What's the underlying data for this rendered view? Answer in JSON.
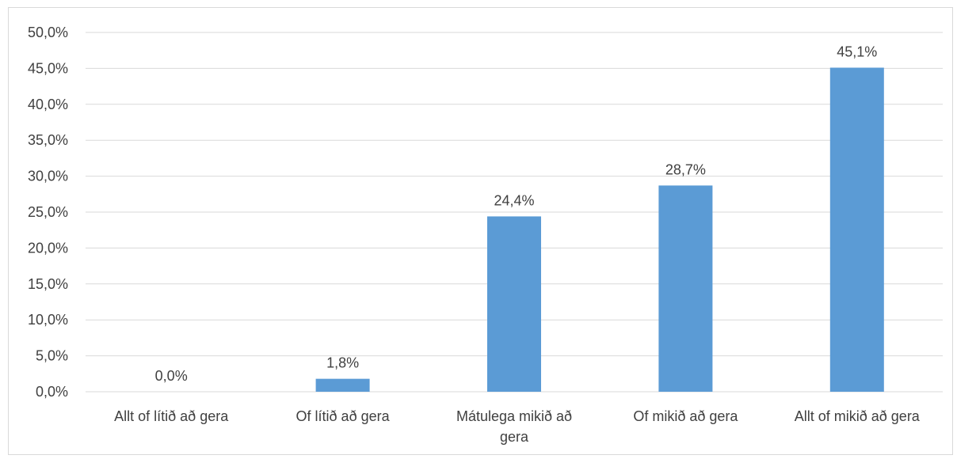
{
  "chart_data": {
    "type": "bar",
    "categories": [
      "Allt of lítið að gera",
      "Of lítið að gera",
      "Mátulega mikið að gera",
      "Of mikið að gera",
      "Allt of mikið að gera"
    ],
    "category_lines": [
      [
        "Allt of lítið að gera"
      ],
      [
        "Of lítið að gera"
      ],
      [
        "Mátulega mikið að",
        "gera"
      ],
      [
        "Of mikið að gera"
      ],
      [
        "Allt of mikið að gera"
      ]
    ],
    "values": [
      0.0,
      1.8,
      24.4,
      28.7,
      45.1
    ],
    "data_labels": [
      "0,0%",
      "1,8%",
      "24,4%",
      "28,7%",
      "45,1%"
    ],
    "yticks": [
      0,
      5,
      10,
      15,
      20,
      25,
      30,
      35,
      40,
      45,
      50
    ],
    "ytick_labels": [
      "0,0%",
      "5,0%",
      "10,0%",
      "15,0%",
      "20,0%",
      "25,0%",
      "30,0%",
      "35,0%",
      "40,0%",
      "45,0%",
      "50,0%"
    ],
    "ylim": [
      0,
      50
    ],
    "grid": true,
    "legend": false,
    "bar_color": "#5b9bd5",
    "grid_color": "#d9d9d9",
    "text_color": "#404040"
  }
}
